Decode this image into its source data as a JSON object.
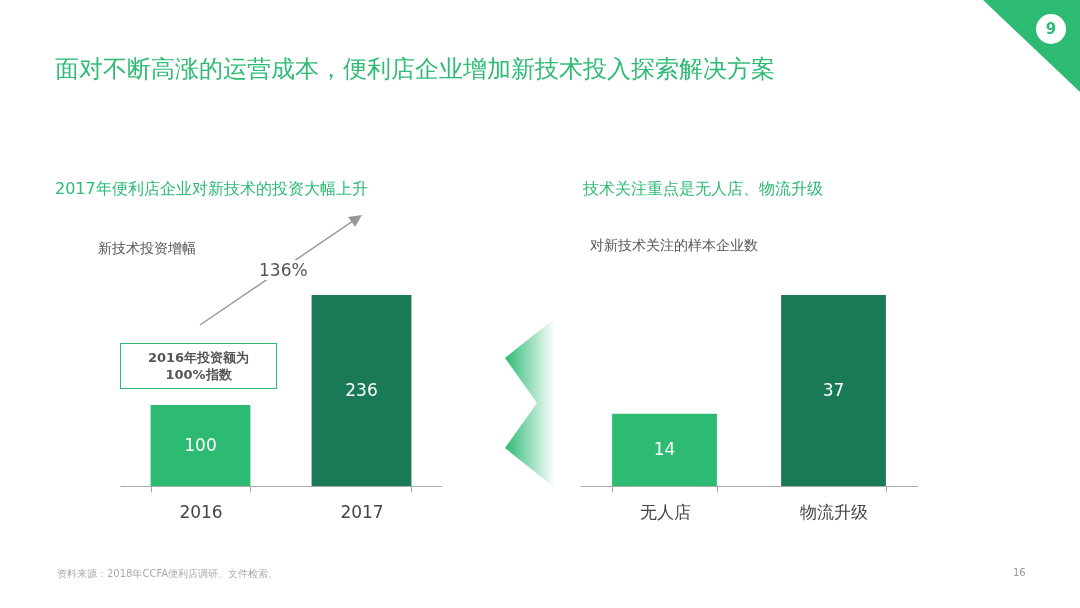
{
  "chart_data": [
    {
      "type": "bar",
      "title": "2017年便利店企业对新技术的投资大幅上升",
      "subtitle": "新技术投资增幅",
      "categories": [
        "2016",
        "2017"
      ],
      "values": [
        100,
        236
      ],
      "colors": [
        "#2dbb74",
        "#1a7a55"
      ],
      "data_labels": true,
      "annotations": [
        "面对不断高涨的运营成本，便利店企业增加新技术投入探索解决方案",
        "136%",
        "2016年投资额为100%指数",
        "资料来源：2018年CCFA便利店调研、文件检索、",
        "16",
        "9"
      ]
    },
    {
      "type": "bar",
      "title": "技术关注重点是无人店、物流升级",
      "subtitle": "对新技术关注的样本企业数",
      "categories": [
        "无人店",
        "物流升级"
      ],
      "values": [
        14,
        37
      ],
      "colors": [
        "#2dbb74",
        "#1a7a55"
      ],
      "data_labels": true
    }
  ]
}
